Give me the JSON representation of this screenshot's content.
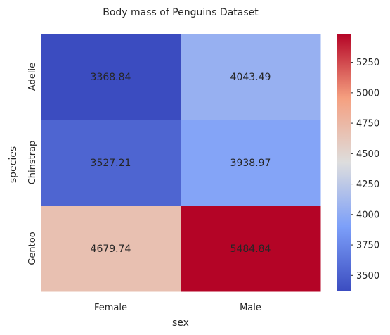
{
  "chart_data": {
    "type": "heatmap",
    "title": "Body mass of Penguins Dataset",
    "xlabel": "sex",
    "ylabel": "species",
    "x_categories": [
      "Female",
      "Male"
    ],
    "y_categories": [
      "Adelie",
      "Chinstrap",
      "Gentoo"
    ],
    "values": [
      [
        3368.84,
        4043.49
      ],
      [
        3527.21,
        3938.97
      ],
      [
        4679.74,
        5484.84
      ]
    ],
    "value_labels": [
      [
        "3368.84",
        "4043.49"
      ],
      [
        "3527.21",
        "3938.97"
      ],
      [
        "4679.74",
        "5484.84"
      ]
    ],
    "colormap": "coolwarm",
    "colorbar": {
      "range": [
        3368.84,
        5484.84
      ],
      "ticks": [
        3500,
        3750,
        4000,
        4250,
        4500,
        4750,
        5000,
        5250
      ],
      "tick_labels": [
        "3500",
        "3750",
        "4000",
        "4250",
        "4500",
        "4750",
        "5000",
        "5250"
      ]
    },
    "colors": {
      "low": "#3b4cc0",
      "mid": "#dddddd",
      "high": "#b40426",
      "text": "#262626"
    }
  }
}
